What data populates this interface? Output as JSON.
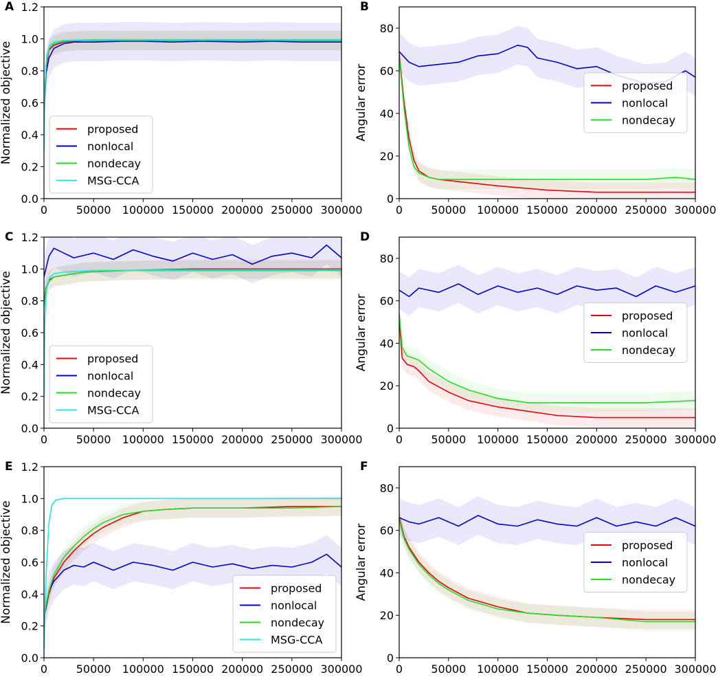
{
  "chart_data": [
    {
      "panel": "A",
      "type": "line",
      "ylabel": "Normalized objective",
      "xlabel": "",
      "xlim": [
        0,
        300000
      ],
      "ylim": [
        0.0,
        1.2
      ],
      "xticks": [
        0,
        50000,
        100000,
        150000,
        200000,
        250000,
        300000
      ],
      "xtick_labels": [
        "0",
        "50000",
        "100000",
        "150000",
        "200000",
        "250000",
        "300000"
      ],
      "yticks": [
        0.0,
        0.2,
        0.4,
        0.6,
        0.8,
        1.0,
        1.2
      ],
      "ytick_labels": [
        "0.0",
        "0.2",
        "0.4",
        "0.6",
        "0.8",
        "1.0",
        "1.2"
      ],
      "legend_position": "lower-left",
      "series": [
        {
          "name": "proposed",
          "color": "#e8000b",
          "x": [
            0,
            2000,
            5000,
            10000,
            20000,
            40000,
            80000,
            150000,
            220000,
            300000
          ],
          "y": [
            0.5,
            0.82,
            0.93,
            0.96,
            0.98,
            0.99,
            0.99,
            0.99,
            0.99,
            0.99
          ]
        },
        {
          "name": "nonlocal",
          "color": "#0000c8",
          "x": [
            0,
            2000,
            5000,
            10000,
            20000,
            30000,
            50000,
            80000,
            100000,
            130000,
            160000,
            200000,
            230000,
            260000,
            300000
          ],
          "y": [
            0.5,
            0.78,
            0.88,
            0.94,
            0.97,
            0.98,
            0.98,
            0.985,
            0.985,
            0.98,
            0.985,
            0.98,
            0.985,
            0.98,
            0.98
          ]
        },
        {
          "name": "nondecay",
          "color": "#22dd22",
          "x": [
            0,
            2000,
            5000,
            10000,
            20000,
            40000,
            80000,
            150000,
            220000,
            300000
          ],
          "y": [
            0.5,
            0.84,
            0.94,
            0.97,
            0.985,
            0.99,
            0.99,
            0.99,
            0.99,
            0.99
          ]
        },
        {
          "name": "MSG-CCA",
          "color": "#22e5e5",
          "x": [
            0,
            1000,
            3000,
            6000,
            10000,
            20000,
            50000,
            150000,
            300000
          ],
          "y": [
            0.3,
            0.72,
            0.9,
            0.96,
            0.98,
            0.99,
            0.995,
            0.995,
            0.995
          ]
        }
      ]
    },
    {
      "panel": "B",
      "type": "line",
      "ylabel": "Angular error",
      "xlabel": "",
      "xlim": [
        0,
        300000
      ],
      "ylim": [
        0,
        90
      ],
      "xticks": [
        0,
        50000,
        100000,
        150000,
        200000,
        250000,
        300000
      ],
      "xtick_labels": [
        "0",
        "50000",
        "100000",
        "150000",
        "200000",
        "250000",
        "300000"
      ],
      "yticks": [
        0,
        20,
        40,
        60,
        80
      ],
      "ytick_labels": [
        "0",
        "20",
        "40",
        "60",
        "80"
      ],
      "legend_position": "center-right",
      "series": [
        {
          "name": "proposed",
          "color": "#e8000b",
          "x": [
            0,
            5000,
            10000,
            15000,
            20000,
            30000,
            40000,
            60000,
            80000,
            100000,
            150000,
            200000,
            250000,
            300000
          ],
          "y": [
            68,
            45,
            28,
            18,
            13,
            10,
            9,
            8,
            7,
            6,
            4,
            3,
            3,
            3
          ]
        },
        {
          "name": "nonlocal",
          "color": "#0000c8",
          "x": [
            0,
            10000,
            20000,
            40000,
            60000,
            80000,
            100000,
            120000,
            130000,
            140000,
            160000,
            180000,
            200000,
            220000,
            250000,
            270000,
            290000,
            300000
          ],
          "y": [
            69,
            64,
            62,
            63,
            64,
            67,
            68,
            72,
            71,
            66,
            64,
            61,
            62,
            58,
            54,
            55,
            60,
            57
          ]
        },
        {
          "name": "nondecay",
          "color": "#22dd22",
          "x": [
            0,
            5000,
            10000,
            15000,
            20000,
            30000,
            40000,
            60000,
            80000,
            120000,
            160000,
            200000,
            250000,
            280000,
            300000
          ],
          "y": [
            67,
            42,
            24,
            15,
            12,
            10,
            9,
            9,
            9,
            9,
            9,
            9,
            9,
            10,
            9
          ]
        }
      ]
    },
    {
      "panel": "C",
      "type": "line",
      "ylabel": "Normalized objective",
      "xlabel": "",
      "xlim": [
        0,
        300000
      ],
      "ylim": [
        0.0,
        1.2
      ],
      "xticks": [
        0,
        50000,
        100000,
        150000,
        200000,
        250000,
        300000
      ],
      "xtick_labels": [
        "0",
        "50000",
        "100000",
        "150000",
        "200000",
        "250000",
        "300000"
      ],
      "yticks": [
        0.0,
        0.2,
        0.4,
        0.6,
        0.8,
        1.0,
        1.2
      ],
      "ytick_labels": [
        "0.0",
        "0.2",
        "0.4",
        "0.6",
        "0.8",
        "1.0",
        "1.2"
      ],
      "legend_position": "lower-left",
      "series": [
        {
          "name": "proposed",
          "color": "#e8000b",
          "x": [
            0,
            2000,
            5000,
            10000,
            20000,
            40000,
            80000,
            150000,
            220000,
            300000
          ],
          "y": [
            0.78,
            0.88,
            0.93,
            0.95,
            0.96,
            0.98,
            0.99,
            1.0,
            1.0,
            1.0
          ]
        },
        {
          "name": "nonlocal",
          "color": "#0000c8",
          "x": [
            0,
            5000,
            10000,
            20000,
            30000,
            50000,
            70000,
            90000,
            110000,
            130000,
            150000,
            170000,
            190000,
            210000,
            230000,
            250000,
            270000,
            285000,
            300000
          ],
          "y": [
            0.95,
            1.08,
            1.13,
            1.1,
            1.07,
            1.1,
            1.06,
            1.12,
            1.08,
            1.05,
            1.1,
            1.06,
            1.09,
            1.03,
            1.08,
            1.1,
            1.07,
            1.15,
            1.07
          ]
        },
        {
          "name": "nondecay",
          "color": "#22dd22",
          "x": [
            0,
            2000,
            5000,
            10000,
            20000,
            40000,
            80000,
            150000,
            220000,
            300000
          ],
          "y": [
            0.76,
            0.87,
            0.92,
            0.95,
            0.96,
            0.98,
            0.99,
            0.99,
            0.99,
            0.99
          ]
        },
        {
          "name": "MSG-CCA",
          "color": "#22e5e5",
          "x": [
            0,
            1000,
            3000,
            6000,
            10000,
            20000,
            50000,
            150000,
            300000
          ],
          "y": [
            0.2,
            0.7,
            0.9,
            0.95,
            0.97,
            0.98,
            0.99,
            0.995,
            0.995
          ]
        }
      ]
    },
    {
      "panel": "D",
      "type": "line",
      "ylabel": "Angular error",
      "xlabel": "",
      "xlim": [
        0,
        300000
      ],
      "ylim": [
        0,
        90
      ],
      "xticks": [
        0,
        50000,
        100000,
        150000,
        200000,
        250000,
        300000
      ],
      "xtick_labels": [
        "0",
        "50000",
        "100000",
        "150000",
        "200000",
        "250000",
        "300000"
      ],
      "yticks": [
        0,
        20,
        40,
        60,
        80
      ],
      "ytick_labels": [
        "0",
        "20",
        "40",
        "60",
        "80"
      ],
      "legend_position": "center-right",
      "series": [
        {
          "name": "proposed",
          "color": "#e8000b",
          "x": [
            0,
            3000,
            8000,
            15000,
            20000,
            30000,
            50000,
            70000,
            100000,
            130000,
            160000,
            200000,
            250000,
            300000
          ],
          "y": [
            52,
            33,
            30,
            29,
            27,
            22,
            17,
            13,
            10,
            8,
            6,
            5,
            5,
            5
          ]
        },
        {
          "name": "nonlocal",
          "color": "#0000c8",
          "x": [
            0,
            10000,
            20000,
            40000,
            60000,
            80000,
            100000,
            120000,
            140000,
            160000,
            180000,
            200000,
            220000,
            240000,
            260000,
            280000,
            300000
          ],
          "y": [
            65,
            62,
            66,
            64,
            68,
            63,
            67,
            64,
            66,
            63,
            67,
            65,
            66,
            62,
            67,
            64,
            67
          ]
        },
        {
          "name": "nondecay",
          "color": "#22dd22",
          "x": [
            0,
            3000,
            8000,
            15000,
            20000,
            30000,
            50000,
            70000,
            100000,
            130000,
            160000,
            200000,
            250000,
            300000
          ],
          "y": [
            54,
            38,
            34,
            33,
            32,
            28,
            22,
            18,
            14,
            12,
            12,
            12,
            12,
            13
          ]
        }
      ]
    },
    {
      "panel": "E",
      "type": "line",
      "ylabel": "Normalized objective",
      "xlabel": "",
      "xlim": [
        0,
        300000
      ],
      "ylim": [
        0.0,
        1.2
      ],
      "xticks": [
        0,
        50000,
        100000,
        150000,
        200000,
        250000,
        300000
      ],
      "xtick_labels": [
        "0",
        "50000",
        "100000",
        "150000",
        "200000",
        "250000",
        "300000"
      ],
      "yticks": [
        0.0,
        0.2,
        0.4,
        0.6,
        0.8,
        1.0,
        1.2
      ],
      "ytick_labels": [
        "0.0",
        "0.2",
        "0.4",
        "0.6",
        "0.8",
        "1.0",
        "1.2"
      ],
      "legend_position": "lower-right",
      "series": [
        {
          "name": "proposed",
          "color": "#e8000b",
          "x": [
            0,
            5000,
            10000,
            20000,
            30000,
            40000,
            50000,
            60000,
            80000,
            100000,
            120000,
            150000,
            200000,
            250000,
            300000
          ],
          "y": [
            0.25,
            0.4,
            0.5,
            0.6,
            0.67,
            0.73,
            0.78,
            0.82,
            0.88,
            0.92,
            0.93,
            0.94,
            0.94,
            0.95,
            0.95
          ]
        },
        {
          "name": "nonlocal",
          "color": "#0000c8",
          "x": [
            0,
            5000,
            10000,
            20000,
            30000,
            40000,
            50000,
            70000,
            90000,
            110000,
            130000,
            150000,
            170000,
            190000,
            210000,
            230000,
            250000,
            270000,
            285000,
            300000
          ],
          "y": [
            0.25,
            0.42,
            0.48,
            0.55,
            0.58,
            0.57,
            0.6,
            0.55,
            0.6,
            0.58,
            0.55,
            0.6,
            0.57,
            0.59,
            0.56,
            0.58,
            0.57,
            0.6,
            0.65,
            0.57
          ]
        },
        {
          "name": "nondecay",
          "color": "#22dd22",
          "x": [
            0,
            5000,
            10000,
            20000,
            30000,
            40000,
            50000,
            60000,
            80000,
            100000,
            120000,
            150000,
            200000,
            250000,
            300000
          ],
          "y": [
            0.27,
            0.42,
            0.52,
            0.63,
            0.7,
            0.76,
            0.81,
            0.85,
            0.9,
            0.92,
            0.93,
            0.94,
            0.94,
            0.94,
            0.95
          ]
        },
        {
          "name": "MSG-CCA",
          "color": "#22e5e5",
          "x": [
            0,
            2000,
            5000,
            8000,
            12000,
            20000,
            50000,
            150000,
            300000
          ],
          "y": [
            0.05,
            0.5,
            0.85,
            0.96,
            0.99,
            1.0,
            1.0,
            1.0,
            1.0
          ]
        }
      ]
    },
    {
      "panel": "F",
      "type": "line",
      "ylabel": "Angular error",
      "xlabel": "",
      "xlim": [
        0,
        300000
      ],
      "ylim": [
        0,
        90
      ],
      "xticks": [
        0,
        50000,
        100000,
        150000,
        200000,
        250000,
        300000
      ],
      "xtick_labels": [
        "0",
        "50000",
        "100000",
        "150000",
        "200000",
        "250000",
        "300000"
      ],
      "yticks": [
        0,
        20,
        40,
        60,
        80
      ],
      "ytick_labels": [
        "0",
        "20",
        "40",
        "60",
        "80"
      ],
      "legend_position": "center-right",
      "series": [
        {
          "name": "proposed",
          "color": "#e8000b",
          "x": [
            0,
            5000,
            10000,
            20000,
            30000,
            40000,
            50000,
            70000,
            100000,
            130000,
            160000,
            200000,
            250000,
            300000
          ],
          "y": [
            66,
            57,
            52,
            45,
            40,
            36,
            33,
            28,
            24,
            21,
            20,
            19,
            18,
            18
          ]
        },
        {
          "name": "nonlocal",
          "color": "#0000c8",
          "x": [
            0,
            10000,
            20000,
            40000,
            60000,
            80000,
            100000,
            120000,
            140000,
            160000,
            180000,
            200000,
            220000,
            240000,
            260000,
            280000,
            300000
          ],
          "y": [
            66,
            64,
            63,
            66,
            62,
            67,
            63,
            62,
            65,
            63,
            62,
            66,
            62,
            64,
            62,
            66,
            62
          ]
        },
        {
          "name": "nondecay",
          "color": "#22dd22",
          "x": [
            0,
            5000,
            10000,
            20000,
            30000,
            40000,
            50000,
            70000,
            100000,
            130000,
            160000,
            200000,
            250000,
            300000
          ],
          "y": [
            65,
            56,
            51,
            44,
            39,
            35,
            32,
            27,
            23,
            21,
            20,
            19,
            17,
            17
          ]
        }
      ]
    }
  ]
}
